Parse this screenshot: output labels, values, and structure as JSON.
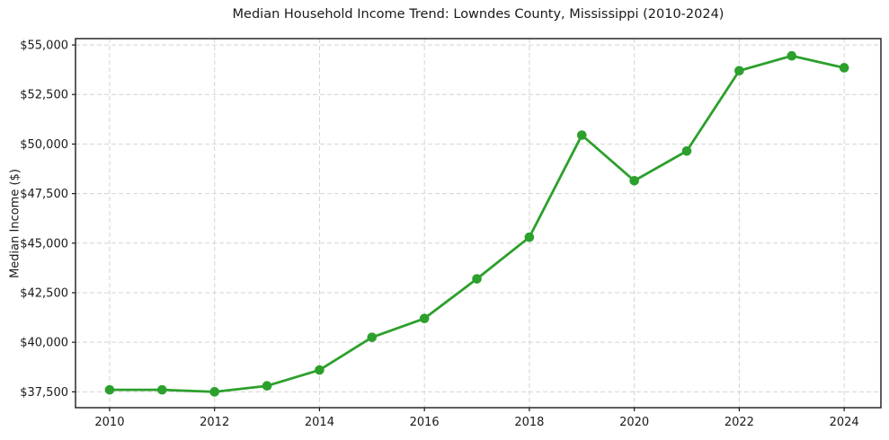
{
  "chart_data": {
    "type": "line",
    "title": "Median Household Income Trend: Lowndes County, Mississippi (2010-2024)",
    "xlabel": "",
    "ylabel": "Median Income ($)",
    "x": [
      2010,
      2011,
      2012,
      2013,
      2014,
      2015,
      2016,
      2017,
      2018,
      2019,
      2020,
      2021,
      2022,
      2023,
      2024
    ],
    "values": [
      37600,
      37600,
      37500,
      37800,
      38600,
      40250,
      41200,
      43200,
      45300,
      50450,
      48150,
      49650,
      53700,
      54450,
      53850
    ],
    "xlim": [
      2009.35,
      2024.7
    ],
    "ylim": [
      36700,
      55320
    ],
    "x_ticks": [
      2010,
      2012,
      2014,
      2016,
      2018,
      2020,
      2022,
      2024
    ],
    "x_tick_labels": [
      "2010",
      "2012",
      "2014",
      "2016",
      "2018",
      "2020",
      "2022",
      "2024"
    ],
    "y_ticks": [
      37500,
      40000,
      42500,
      45000,
      47500,
      50000,
      52500,
      55000
    ],
    "y_tick_labels": [
      "$37,500",
      "$40,000",
      "$42,500",
      "$45,000",
      "$47,500",
      "$50,000",
      "$52,500",
      "$55,000"
    ],
    "grid": true,
    "grid_style": "dashed",
    "legend_position": "none",
    "line_color": "#2ca02c",
    "marker": "circle",
    "marker_color": "#2ca02c",
    "grid_color": "#d4d4d4",
    "spine_color": "#1a1a1a",
    "text_color": "#1a1a1a"
  }
}
